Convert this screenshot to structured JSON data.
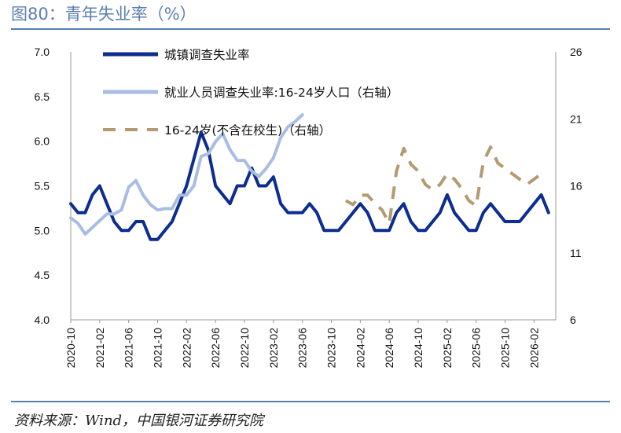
{
  "figure_title": "图80：青年失业率（%）",
  "source": "资料来源：Wind，中国银河证券研究院",
  "colors": {
    "title": "#5b7fb4",
    "urban": "#0d2d8f",
    "youth_all": "#a9bde3",
    "youth_ex_students": "#b39a72"
  },
  "chart_data": {
    "type": "line",
    "title": "",
    "xlabel": "",
    "ylabel": "",
    "ylim": [
      4.0,
      7.0
    ],
    "y2lim": [
      6,
      26
    ],
    "yticks": [
      "4.0",
      "4.5",
      "5.0",
      "5.5",
      "6.0",
      "6.5",
      "7.0"
    ],
    "y2ticks": [
      "6",
      "11",
      "16",
      "21",
      "26"
    ],
    "x_tick_labels": [
      "2020-10",
      "2021-02",
      "2021-06",
      "2021-10",
      "2022-02",
      "2022-06",
      "2022-10",
      "2023-02",
      "2023-06",
      "2023-10",
      "2024-02",
      "2024-06",
      "2024-10",
      "2025-02",
      "2025-06",
      "2025-10",
      "2026-02"
    ],
    "x_start": "2020-10",
    "legend_position": "top-left",
    "grid": false,
    "series": [
      {
        "name": "城镇调查失业率",
        "axis": "left",
        "style": "solid",
        "color": "#0d2d8f",
        "points": [
          [
            "2020-10",
            5.3
          ],
          [
            "2020-11",
            5.2
          ],
          [
            "2020-12",
            5.2
          ],
          [
            "2021-01",
            5.4
          ],
          [
            "2021-02",
            5.5
          ],
          [
            "2021-03",
            5.3
          ],
          [
            "2021-04",
            5.1
          ],
          [
            "2021-05",
            5.0
          ],
          [
            "2021-06",
            5.0
          ],
          [
            "2021-07",
            5.1
          ],
          [
            "2021-08",
            5.1
          ],
          [
            "2021-09",
            4.9
          ],
          [
            "2021-10",
            4.9
          ],
          [
            "2021-11",
            5.0
          ],
          [
            "2021-12",
            5.1
          ],
          [
            "2022-01",
            5.3
          ],
          [
            "2022-02",
            5.5
          ],
          [
            "2022-03",
            5.8
          ],
          [
            "2022-04",
            6.1
          ],
          [
            "2022-05",
            5.9
          ],
          [
            "2022-06",
            5.5
          ],
          [
            "2022-07",
            5.4
          ],
          [
            "2022-08",
            5.3
          ],
          [
            "2022-09",
            5.5
          ],
          [
            "2022-10",
            5.5
          ],
          [
            "2022-11",
            5.7
          ],
          [
            "2022-12",
            5.5
          ],
          [
            "2023-01",
            5.5
          ],
          [
            "2023-02",
            5.6
          ],
          [
            "2023-03",
            5.3
          ],
          [
            "2023-04",
            5.2
          ],
          [
            "2023-05",
            5.2
          ],
          [
            "2023-06",
            5.2
          ],
          [
            "2023-07",
            5.3
          ],
          [
            "2023-08",
            5.2
          ],
          [
            "2023-09",
            5.0
          ],
          [
            "2023-10",
            5.0
          ],
          [
            "2023-11",
            5.0
          ],
          [
            "2023-12",
            5.1
          ],
          [
            "2024-01",
            5.2
          ],
          [
            "2024-02",
            5.3
          ],
          [
            "2024-03",
            5.2
          ],
          [
            "2024-04",
            5.0
          ],
          [
            "2024-05",
            5.0
          ],
          [
            "2024-06",
            5.0
          ],
          [
            "2024-07",
            5.2
          ],
          [
            "2024-08",
            5.3
          ],
          [
            "2024-09",
            5.1
          ],
          [
            "2024-10",
            5.0
          ],
          [
            "2024-11",
            5.0
          ],
          [
            "2024-12",
            5.1
          ],
          [
            "2025-01",
            5.2
          ],
          [
            "2025-02",
            5.4
          ],
          [
            "2025-03",
            5.2
          ],
          [
            "2025-04",
            5.1
          ],
          [
            "2025-05",
            5.0
          ],
          [
            "2025-06",
            5.0
          ],
          [
            "2025-07",
            5.2
          ],
          [
            "2025-08",
            5.3
          ],
          [
            "2025-09",
            5.2
          ],
          [
            "2025-10",
            5.1
          ],
          [
            "2025-11",
            5.1
          ],
          [
            "2025-12",
            5.1
          ],
          [
            "2026-01",
            5.2
          ],
          [
            "2026-02",
            5.3
          ],
          [
            "2026-03",
            5.4
          ],
          [
            "2026-04",
            5.2
          ]
        ]
      },
      {
        "name": "就业人员调查失业率:16-24岁人口（右轴）",
        "axis": "right",
        "style": "solid",
        "color": "#a9bde3",
        "points": [
          [
            "2020-10",
            13.6
          ],
          [
            "2020-11",
            13.2
          ],
          [
            "2020-12",
            12.4
          ],
          [
            "2021-01",
            12.9
          ],
          [
            "2021-02",
            13.4
          ],
          [
            "2021-03",
            13.9
          ],
          [
            "2021-04",
            13.9
          ],
          [
            "2021-05",
            14.2
          ],
          [
            "2021-06",
            15.9
          ],
          [
            "2021-07",
            16.4
          ],
          [
            "2021-08",
            15.3
          ],
          [
            "2021-09",
            14.6
          ],
          [
            "2021-10",
            14.2
          ],
          [
            "2021-11",
            14.3
          ],
          [
            "2021-12",
            14.3
          ],
          [
            "2022-01",
            15.3
          ],
          [
            "2022-02",
            15.3
          ],
          [
            "2022-03",
            16.0
          ],
          [
            "2022-04",
            18.2
          ],
          [
            "2022-05",
            18.4
          ],
          [
            "2022-06",
            19.3
          ],
          [
            "2022-07",
            19.9
          ],
          [
            "2022-08",
            18.7
          ],
          [
            "2022-09",
            17.9
          ],
          [
            "2022-10",
            17.9
          ],
          [
            "2022-11",
            17.1
          ],
          [
            "2022-12",
            16.7
          ],
          [
            "2023-01",
            17.3
          ],
          [
            "2023-02",
            18.1
          ],
          [
            "2023-03",
            19.6
          ],
          [
            "2023-04",
            20.4
          ],
          [
            "2023-05",
            20.8
          ],
          [
            "2023-06",
            21.3
          ]
        ]
      },
      {
        "name": "16-24岁(不含在校生)（右轴）",
        "axis": "right",
        "style": "dashed",
        "color": "#b39a72",
        "points": [
          [
            "2023-12",
            14.9
          ],
          [
            "2024-01",
            14.6
          ],
          [
            "2024-02",
            15.3
          ],
          [
            "2024-03",
            15.3
          ],
          [
            "2024-04",
            14.7
          ],
          [
            "2024-05",
            14.2
          ],
          [
            "2024-06",
            13.2
          ],
          [
            "2024-07",
            17.1
          ],
          [
            "2024-08",
            18.8
          ],
          [
            "2024-09",
            17.6
          ],
          [
            "2024-10",
            17.1
          ],
          [
            "2024-11",
            16.1
          ],
          [
            "2024-12",
            15.7
          ],
          [
            "2025-01",
            16.1
          ],
          [
            "2025-02",
            16.9
          ],
          [
            "2025-03",
            16.5
          ],
          [
            "2025-04",
            15.8
          ],
          [
            "2025-05",
            14.9
          ],
          [
            "2025-06",
            14.5
          ],
          [
            "2025-07",
            17.8
          ],
          [
            "2025-08",
            18.9
          ],
          [
            "2025-09",
            17.7
          ],
          [
            "2025-10",
            17.3
          ],
          [
            "2025-11",
            16.9
          ],
          [
            "2025-12",
            16.5
          ],
          [
            "2026-01",
            16.1
          ],
          [
            "2026-02",
            16.5
          ],
          [
            "2026-03",
            16.9
          ]
        ]
      }
    ]
  }
}
